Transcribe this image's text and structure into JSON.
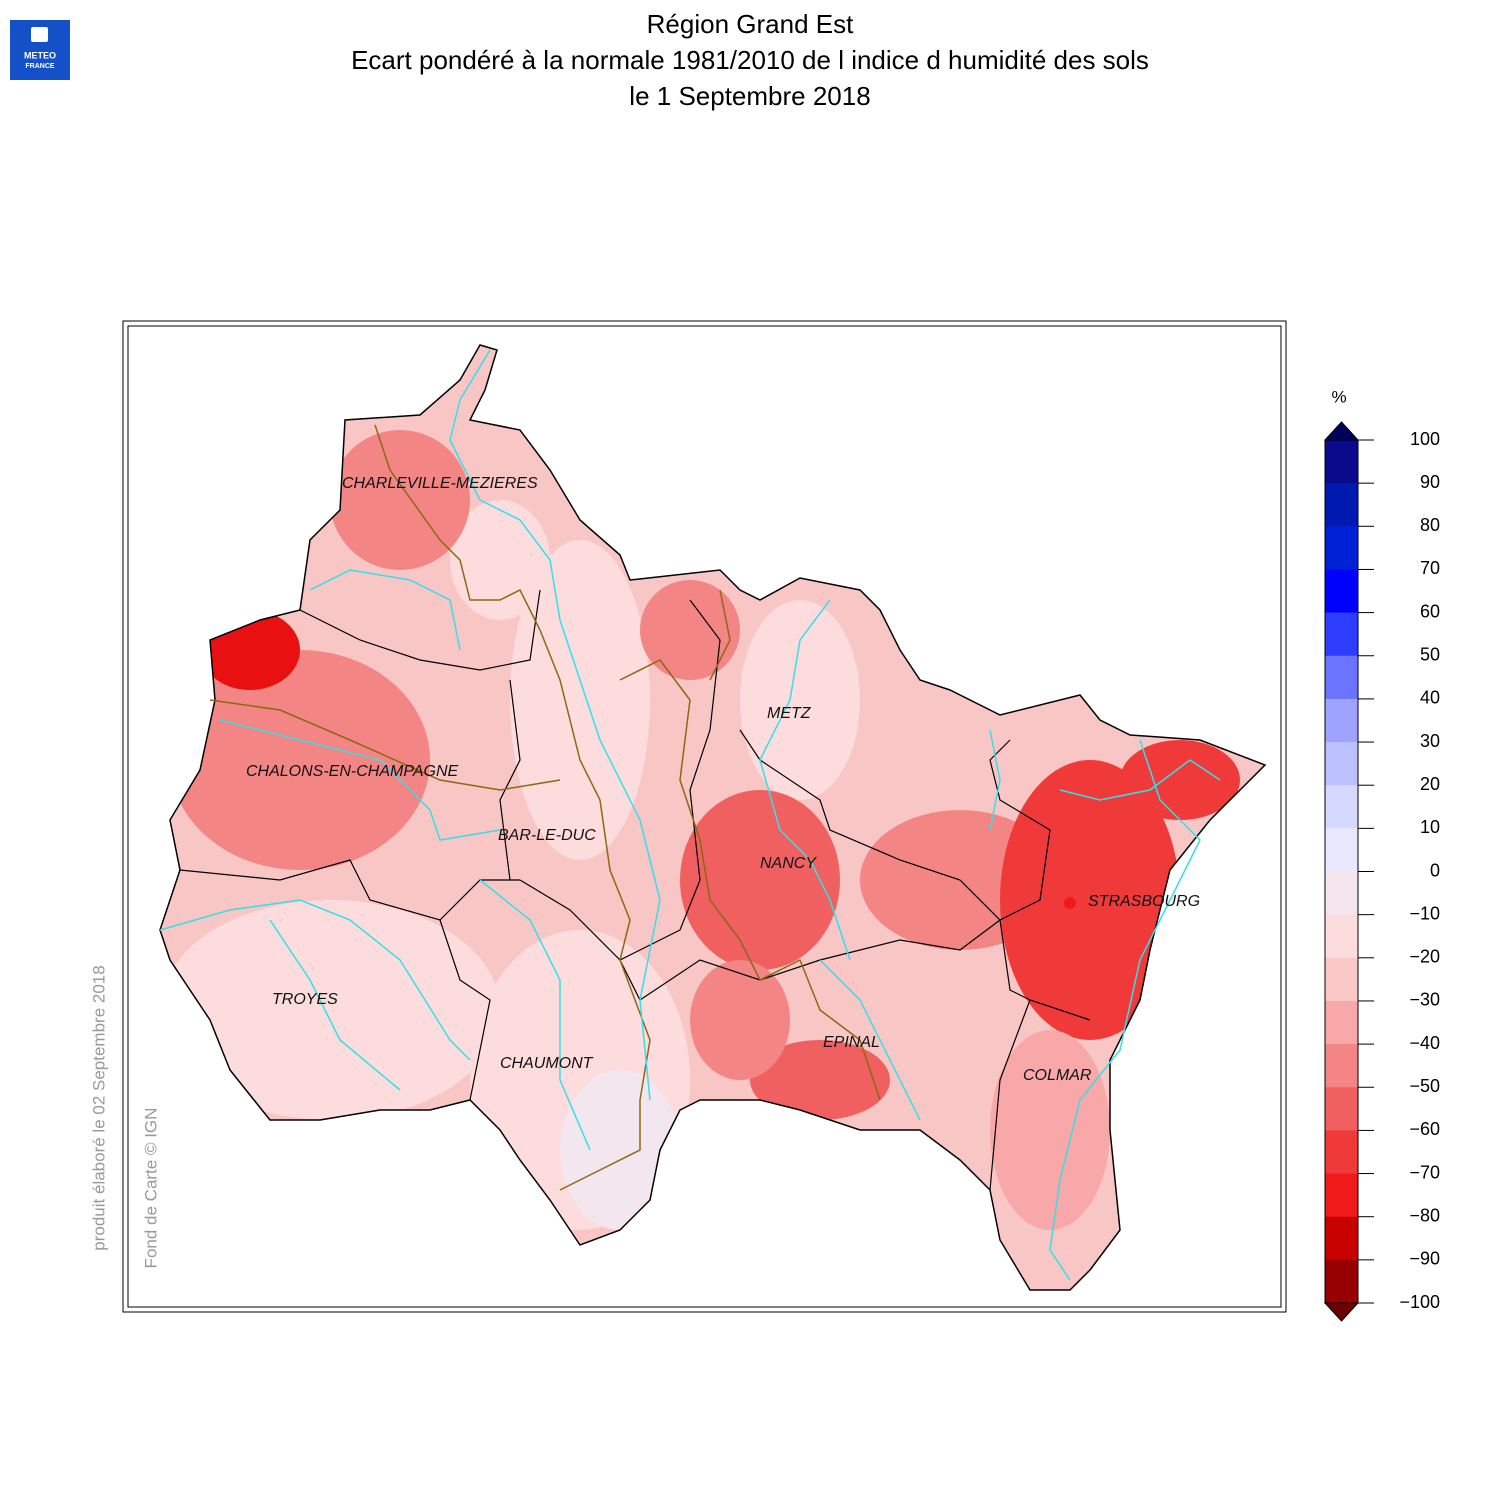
{
  "header": {
    "title_lines": [
      "Région Grand Est",
      "Ecart pondéré à la normale 1981/2010 de l indice d humidité des sols",
      "le 1 Septembre 2018"
    ],
    "logo": [
      "METEO",
      "FRANCE"
    ]
  },
  "credits": {
    "produced": "produit élaboré le 02 Septembre 2018",
    "basemap": "Fond de Carte © IGN"
  },
  "cities": [
    "CHARLEVILLE-MEZIERES",
    "CHALONS-EN-CHAMPAGNE",
    "BAR-LE-DUC",
    "METZ",
    "NANCY",
    "STRASBOURG",
    "TROYES",
    "CHAUMONT",
    "EPINAL",
    "COLMAR"
  ],
  "colorbar": {
    "unit": "%",
    "lim": [
      -100,
      100
    ],
    "ticks": [
      100,
      90,
      80,
      70,
      60,
      50,
      40,
      30,
      20,
      10,
      0,
      {
        "value": -10,
        "label": "−10"
      },
      {
        "value": -20,
        "label": "−20"
      },
      {
        "value": -30,
        "label": "−30"
      },
      {
        "value": -40,
        "label": "−40"
      },
      {
        "value": -50,
        "label": "−50"
      },
      {
        "value": -60,
        "label": "−60"
      },
      {
        "value": -70,
        "label": "−70"
      },
      {
        "value": -80,
        "label": "−80"
      },
      {
        "value": -90,
        "label": "−90"
      },
      {
        "value": -100,
        "label": "−100"
      }
    ],
    "colors": [
      "#0a0a8c",
      "#0019b0",
      "#0022d6",
      "#0000ff",
      "#2e3dff",
      "#6b74ff",
      "#9ea3ff",
      "#bcc0ff",
      "#d5d8ff",
      "#e8e9ff",
      "#f5e6ee",
      "#fcdcdc",
      "#fbc8c8",
      "#f8a8a8",
      "#f48585",
      "#f06060",
      "#f03a3a",
      "#f01a1a",
      "#c80000",
      "#960000"
    ],
    "over_color": "#00005a",
    "under_color": "#6a0000"
  }
}
